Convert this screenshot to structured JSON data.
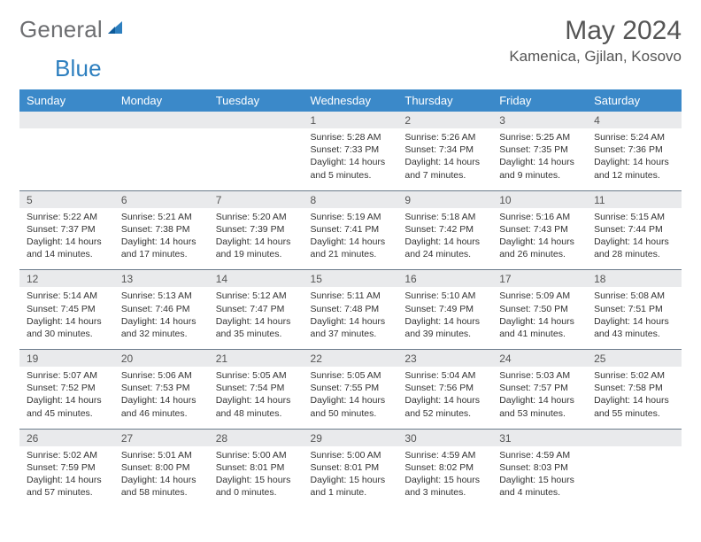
{
  "brand": {
    "word1": "General",
    "word2": "Blue"
  },
  "title": "May 2024",
  "location": "Kamenica, Gjilan, Kosovo",
  "colors": {
    "header_bg": "#3b89c9",
    "daterow_bg": "#e9eaec",
    "rule": "#6a7a8a",
    "logo_gray": "#6d6e71",
    "logo_blue": "#2d7fbf"
  },
  "dow": [
    "Sunday",
    "Monday",
    "Tuesday",
    "Wednesday",
    "Thursday",
    "Friday",
    "Saturday"
  ],
  "weeks": [
    [
      null,
      null,
      null,
      {
        "d": "1",
        "sr": "5:28 AM",
        "ss": "7:33 PM",
        "dl": "14 hours and 5 minutes."
      },
      {
        "d": "2",
        "sr": "5:26 AM",
        "ss": "7:34 PM",
        "dl": "14 hours and 7 minutes."
      },
      {
        "d": "3",
        "sr": "5:25 AM",
        "ss": "7:35 PM",
        "dl": "14 hours and 9 minutes."
      },
      {
        "d": "4",
        "sr": "5:24 AM",
        "ss": "7:36 PM",
        "dl": "14 hours and 12 minutes."
      }
    ],
    [
      {
        "d": "5",
        "sr": "5:22 AM",
        "ss": "7:37 PM",
        "dl": "14 hours and 14 minutes."
      },
      {
        "d": "6",
        "sr": "5:21 AM",
        "ss": "7:38 PM",
        "dl": "14 hours and 17 minutes."
      },
      {
        "d": "7",
        "sr": "5:20 AM",
        "ss": "7:39 PM",
        "dl": "14 hours and 19 minutes."
      },
      {
        "d": "8",
        "sr": "5:19 AM",
        "ss": "7:41 PM",
        "dl": "14 hours and 21 minutes."
      },
      {
        "d": "9",
        "sr": "5:18 AM",
        "ss": "7:42 PM",
        "dl": "14 hours and 24 minutes."
      },
      {
        "d": "10",
        "sr": "5:16 AM",
        "ss": "7:43 PM",
        "dl": "14 hours and 26 minutes."
      },
      {
        "d": "11",
        "sr": "5:15 AM",
        "ss": "7:44 PM",
        "dl": "14 hours and 28 minutes."
      }
    ],
    [
      {
        "d": "12",
        "sr": "5:14 AM",
        "ss": "7:45 PM",
        "dl": "14 hours and 30 minutes."
      },
      {
        "d": "13",
        "sr": "5:13 AM",
        "ss": "7:46 PM",
        "dl": "14 hours and 32 minutes."
      },
      {
        "d": "14",
        "sr": "5:12 AM",
        "ss": "7:47 PM",
        "dl": "14 hours and 35 minutes."
      },
      {
        "d": "15",
        "sr": "5:11 AM",
        "ss": "7:48 PM",
        "dl": "14 hours and 37 minutes."
      },
      {
        "d": "16",
        "sr": "5:10 AM",
        "ss": "7:49 PM",
        "dl": "14 hours and 39 minutes."
      },
      {
        "d": "17",
        "sr": "5:09 AM",
        "ss": "7:50 PM",
        "dl": "14 hours and 41 minutes."
      },
      {
        "d": "18",
        "sr": "5:08 AM",
        "ss": "7:51 PM",
        "dl": "14 hours and 43 minutes."
      }
    ],
    [
      {
        "d": "19",
        "sr": "5:07 AM",
        "ss": "7:52 PM",
        "dl": "14 hours and 45 minutes."
      },
      {
        "d": "20",
        "sr": "5:06 AM",
        "ss": "7:53 PM",
        "dl": "14 hours and 46 minutes."
      },
      {
        "d": "21",
        "sr": "5:05 AM",
        "ss": "7:54 PM",
        "dl": "14 hours and 48 minutes."
      },
      {
        "d": "22",
        "sr": "5:05 AM",
        "ss": "7:55 PM",
        "dl": "14 hours and 50 minutes."
      },
      {
        "d": "23",
        "sr": "5:04 AM",
        "ss": "7:56 PM",
        "dl": "14 hours and 52 minutes."
      },
      {
        "d": "24",
        "sr": "5:03 AM",
        "ss": "7:57 PM",
        "dl": "14 hours and 53 minutes."
      },
      {
        "d": "25",
        "sr": "5:02 AM",
        "ss": "7:58 PM",
        "dl": "14 hours and 55 minutes."
      }
    ],
    [
      {
        "d": "26",
        "sr": "5:02 AM",
        "ss": "7:59 PM",
        "dl": "14 hours and 57 minutes."
      },
      {
        "d": "27",
        "sr": "5:01 AM",
        "ss": "8:00 PM",
        "dl": "14 hours and 58 minutes."
      },
      {
        "d": "28",
        "sr": "5:00 AM",
        "ss": "8:01 PM",
        "dl": "15 hours and 0 minutes."
      },
      {
        "d": "29",
        "sr": "5:00 AM",
        "ss": "8:01 PM",
        "dl": "15 hours and 1 minute."
      },
      {
        "d": "30",
        "sr": "4:59 AM",
        "ss": "8:02 PM",
        "dl": "15 hours and 3 minutes."
      },
      {
        "d": "31",
        "sr": "4:59 AM",
        "ss": "8:03 PM",
        "dl": "15 hours and 4 minutes."
      },
      null
    ]
  ],
  "labels": {
    "sunrise": "Sunrise:",
    "sunset": "Sunset:",
    "daylight": "Daylight:"
  }
}
